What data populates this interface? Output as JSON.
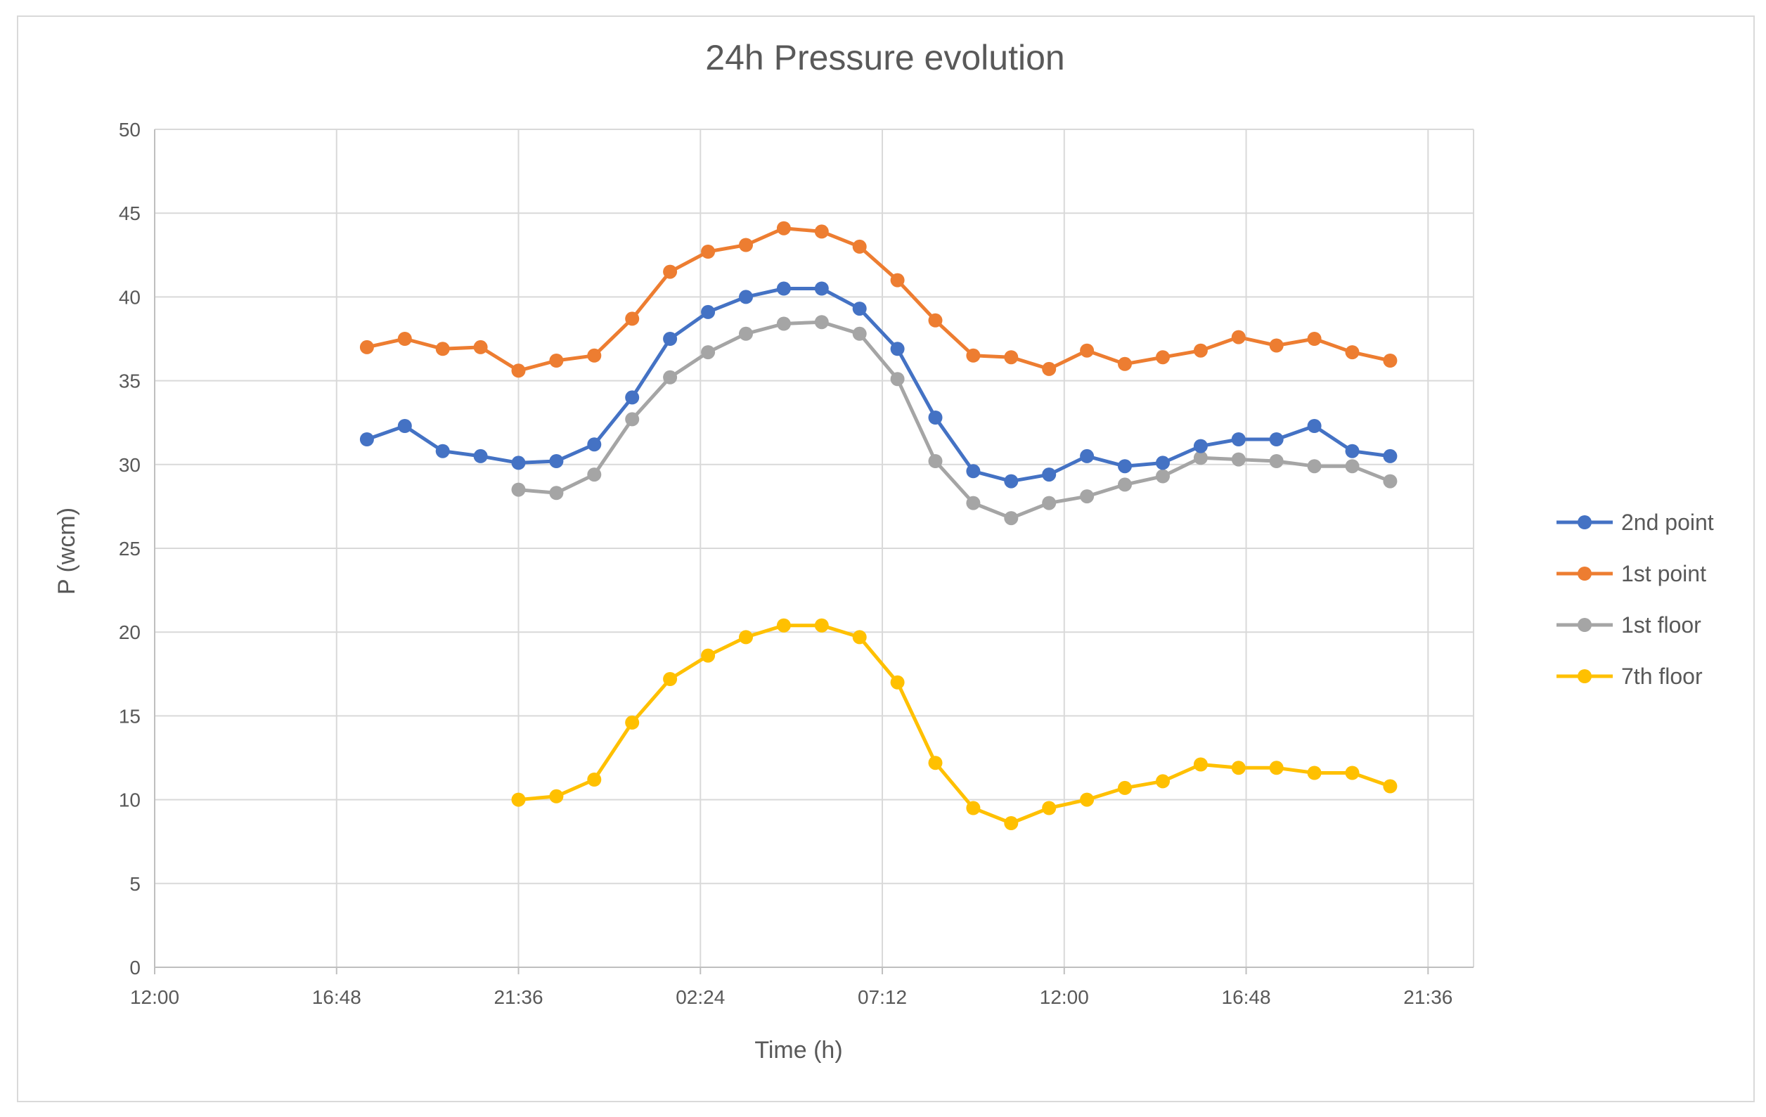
{
  "chart_data": {
    "type": "line",
    "title": "24h Pressure evolution",
    "xlabel": "Time (h)",
    "ylabel": "P (wcm)",
    "ylim": [
      0,
      50
    ],
    "yticks": [
      0,
      5,
      10,
      15,
      20,
      25,
      30,
      35,
      40,
      45,
      50
    ],
    "xlim_hours": [
      12.0,
      46.8
    ],
    "xticks": [
      {
        "label": "12:00",
        "value": 12.0
      },
      {
        "label": "16:48",
        "value": 16.8
      },
      {
        "label": "21:36",
        "value": 21.6
      },
      {
        "label": "02:24",
        "value": 26.4
      },
      {
        "label": "07:12",
        "value": 31.2
      },
      {
        "label": "12:00",
        "value": 36.0
      },
      {
        "label": "16:48",
        "value": 40.8
      },
      {
        "label": "21:36",
        "value": 45.6
      }
    ],
    "grid": true,
    "legend_position": "right",
    "series": [
      {
        "name": "2nd point",
        "color": "#4472C4",
        "x_start_hours": 17.6,
        "x_step_hours": 1.0,
        "values": [
          31.5,
          32.3,
          30.8,
          30.5,
          30.1,
          30.2,
          31.2,
          34.0,
          37.5,
          39.1,
          40.0,
          40.5,
          40.5,
          39.3,
          36.9,
          32.8,
          29.6,
          29.0,
          29.4,
          30.5,
          29.9,
          30.1,
          31.1,
          31.5,
          31.5,
          32.3,
          30.8,
          30.5
        ]
      },
      {
        "name": "1st point",
        "color": "#ED7D31",
        "x_start_hours": 17.6,
        "x_step_hours": 1.0,
        "values": [
          37.0,
          37.5,
          36.9,
          37.0,
          35.6,
          36.2,
          36.5,
          38.7,
          41.5,
          42.7,
          43.1,
          44.1,
          43.9,
          43.0,
          41.0,
          38.6,
          36.5,
          36.4,
          35.7,
          36.8,
          36.0,
          36.4,
          36.8,
          37.6,
          37.1,
          37.5,
          36.7,
          36.2
        ]
      },
      {
        "name": "1st floor",
        "color": "#A5A5A5",
        "x_start_hours": 21.6,
        "x_step_hours": 1.0,
        "values": [
          28.5,
          28.3,
          29.4,
          32.7,
          35.2,
          36.7,
          37.8,
          38.4,
          38.5,
          37.8,
          35.1,
          30.2,
          27.7,
          26.8,
          27.7,
          28.1,
          28.8,
          29.3,
          30.4,
          30.3,
          30.2,
          29.9,
          29.9,
          29.0
        ]
      },
      {
        "name": "7th floor",
        "color": "#FFC000",
        "x_start_hours": 21.6,
        "x_step_hours": 1.0,
        "values": [
          10.0,
          10.2,
          11.2,
          14.6,
          17.2,
          18.6,
          19.7,
          20.4,
          20.4,
          19.7,
          17.0,
          12.2,
          9.5,
          8.6,
          9.5,
          10.0,
          10.7,
          11.1,
          12.1,
          11.9,
          11.9,
          11.6,
          11.6,
          10.8
        ]
      }
    ]
  }
}
